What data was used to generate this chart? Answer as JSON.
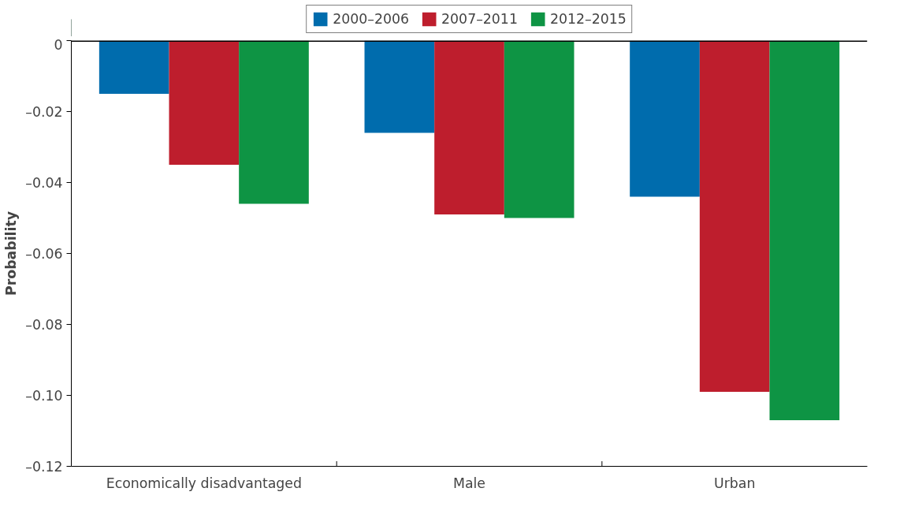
{
  "chart_data": {
    "type": "bar",
    "ylabel": "Probability",
    "categories": [
      "Economically disadvantaged",
      "Male",
      "Urban"
    ],
    "series": [
      {
        "name": "2000–2006",
        "color": "#006cad",
        "values": [
          -0.015,
          -0.026,
          -0.044
        ]
      },
      {
        "name": "2007–2011",
        "color": "#be1e2d",
        "values": [
          -0.035,
          -0.049,
          -0.099
        ]
      },
      {
        "name": "2012–2015",
        "color": "#0e9444",
        "values": [
          -0.046,
          -0.05,
          -0.107
        ]
      }
    ],
    "ylim": [
      -0.12,
      0
    ],
    "yticks": [
      {
        "value": -0.12,
        "label": "–0.12"
      },
      {
        "value": -0.1,
        "label": "–0.10"
      },
      {
        "value": -0.08,
        "label": "–0.08"
      },
      {
        "value": -0.06,
        "label": "–0.06"
      },
      {
        "value": -0.04,
        "label": "–0.04"
      },
      {
        "value": -0.02,
        "label": "–0.02"
      },
      0
    ],
    "ref_lines": [
      {
        "axis": "y",
        "value": 0,
        "color": "#000000"
      }
    ],
    "grid": false,
    "legend": "top"
  }
}
